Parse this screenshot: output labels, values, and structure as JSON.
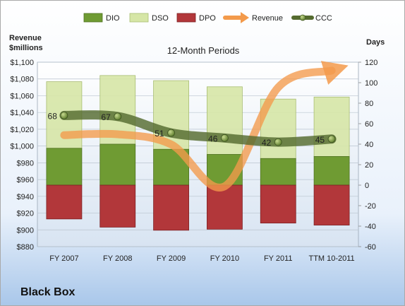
{
  "company": "Black Box",
  "chart_data": {
    "type": "bar",
    "subtitle": "12-Month Periods",
    "y_left_label": [
      "Revenue",
      "$millions"
    ],
    "y_right_label": "Days",
    "categories": [
      "FY 2007",
      "FY 2008",
      "FY 2009",
      "FY 2010",
      "FY 2011",
      "TTM 10-2011"
    ],
    "y_left_lim": [
      880,
      1100
    ],
    "y_left_ticks": [
      "$880",
      "$900",
      "$920",
      "$940",
      "$960",
      "$980",
      "$1,000",
      "$1,020",
      "$1,040",
      "$1,060",
      "$1,080",
      "$1,100"
    ],
    "y_right_lim": [
      -60,
      120
    ],
    "y_right_ticks": [
      "-60",
      "-40",
      "-20",
      "0",
      "20",
      "40",
      "60",
      "80",
      "100",
      "120"
    ],
    "grid": true,
    "legend_position": "top",
    "legend": [
      "DIO",
      "DSO",
      "DPO",
      "Revenue",
      "CCC"
    ],
    "stacked_series": [
      {
        "name": "DIO",
        "axis": "right",
        "color": "#6f9b33",
        "values": [
          36,
          40,
          35,
          30,
          26,
          28
        ]
      },
      {
        "name": "DSO",
        "axis": "right",
        "color": "#d6e6a6",
        "values": [
          65,
          67,
          67,
          66,
          58,
          58
        ]
      },
      {
        "name": "DPO",
        "axis": "right",
        "color": "#b2373a",
        "values": [
          -33,
          -41,
          -44,
          -43,
          -37,
          -39
        ]
      }
    ],
    "revenue": {
      "name": "Revenue",
      "axis": "left",
      "color": "#f39a4b",
      "values": [
        1013,
        1014,
        1002,
        952,
        1070,
        1090
      ]
    },
    "ccc": {
      "name": "CCC",
      "axis": "right",
      "color": "#556b2f",
      "values": [
        68,
        67,
        51,
        46,
        42,
        45
      ],
      "labels": [
        "68",
        "67",
        "51",
        "46",
        "42",
        "45"
      ]
    }
  }
}
